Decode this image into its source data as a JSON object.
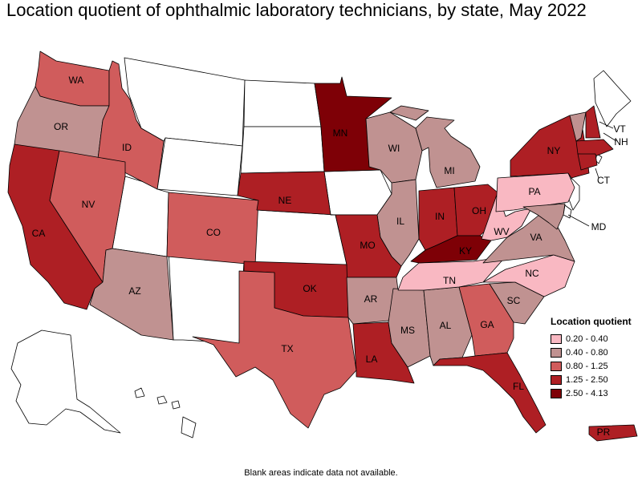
{
  "title": "Location quotient of ophthalmic laboratory technicians, by state, May 2022",
  "note": "Blank areas indicate data not available.",
  "legend": {
    "title": "Location quotient",
    "items": [
      {
        "label": "0.20 - 0.40",
        "color": "#f9b8c2"
      },
      {
        "label": "0.40 - 0.80",
        "color": "#c09291"
      },
      {
        "label": "0.80 - 1.25",
        "color": "#d05c5c"
      },
      {
        "label": "1.25 - 2.50",
        "color": "#ae1f24"
      },
      {
        "label": "2.50 - 4.13",
        "color": "#7e0006"
      }
    ]
  },
  "states": {
    "WA": {
      "label": "WA",
      "bin": 2
    },
    "OR": {
      "label": "OR",
      "bin": 1
    },
    "CA": {
      "label": "CA",
      "bin": 3
    },
    "ID": {
      "label": "ID",
      "bin": 2
    },
    "NV": {
      "label": "NV",
      "bin": 2
    },
    "AZ": {
      "label": "AZ",
      "bin": 1
    },
    "CO": {
      "label": "CO",
      "bin": 2
    },
    "MN": {
      "label": "MN",
      "bin": 4
    },
    "NE": {
      "label": "NE",
      "bin": 3
    },
    "WI": {
      "label": "WI",
      "bin": 1
    },
    "IL": {
      "label": "IL",
      "bin": 1
    },
    "MI": {
      "label": "MI",
      "bin": 1
    },
    "IN": {
      "label": "IN",
      "bin": 3
    },
    "OH": {
      "label": "OH",
      "bin": 3
    },
    "MO": {
      "label": "MO",
      "bin": 3
    },
    "OK": {
      "label": "OK",
      "bin": 3
    },
    "TX": {
      "label": "TX",
      "bin": 2
    },
    "AR": {
      "label": "AR",
      "bin": 1
    },
    "LA": {
      "label": "LA",
      "bin": 3
    },
    "MS": {
      "label": "MS",
      "bin": 1
    },
    "AL": {
      "label": "AL",
      "bin": 1
    },
    "GA": {
      "label": "GA",
      "bin": 2
    },
    "FL": {
      "label": "FL",
      "bin": 3
    },
    "SC": {
      "label": "SC",
      "bin": 1
    },
    "NC": {
      "label": "NC",
      "bin": 0
    },
    "TN": {
      "label": "TN",
      "bin": 0
    },
    "KY": {
      "label": "KY",
      "bin": 4
    },
    "VA": {
      "label": "VA",
      "bin": 1
    },
    "WV": {
      "label": "WV",
      "bin": 0
    },
    "PA": {
      "label": "PA",
      "bin": 0
    },
    "NY": {
      "label": "NY",
      "bin": 3
    },
    "VT": {
      "label": "VT",
      "bin": 1
    },
    "NH": {
      "label": "NH",
      "bin": 3
    },
    "MA": {
      "label": "",
      "bin": 3
    },
    "CT": {
      "label": "CT",
      "bin": 3
    },
    "MD": {
      "label": "MD",
      "bin": 1
    },
    "PR": {
      "label": "PR",
      "bin": 3
    }
  }
}
